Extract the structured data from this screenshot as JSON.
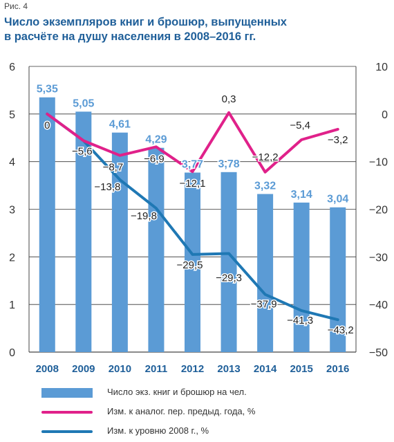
{
  "figure_label": "Рис. 4",
  "title_lines": [
    "Число экземпляров книг и брошюр, выпущенных",
    "в расчёте на душу населения в 2008–2016 гг."
  ],
  "colors": {
    "bar": "#5b9bd5",
    "pink": "#e0218a",
    "blue": "#1f78b4",
    "title": "#1f5f99"
  },
  "legend": [
    {
      "label": "Число экз. книг и брошюр на чел.",
      "color": "#5b9bd5",
      "kind": "bar"
    },
    {
      "label": "Изм. к аналог. пер. предыд. года, %",
      "color": "#e0218a",
      "kind": "line"
    },
    {
      "label": "Изм. к уровню 2008 г., %",
      "color": "#1f78b4",
      "kind": "line"
    }
  ],
  "chart_data": {
    "type": "bar",
    "categories": [
      "2008",
      "2009",
      "2010",
      "2011",
      "2012",
      "2013",
      "2014",
      "2015",
      "2016"
    ],
    "left_axis": {
      "ylim": [
        0,
        6
      ],
      "ticks": [
        "0",
        "1",
        "2",
        "3",
        "4",
        "5",
        "6"
      ]
    },
    "right_axis": {
      "ylim": [
        -50,
        10
      ],
      "ticks": [
        "10",
        "0",
        "−10",
        "−20",
        "−30",
        "−40",
        "−50"
      ]
    },
    "series": [
      {
        "name": "Число экз. книг и брошюр на чел.",
        "type": "bar",
        "axis": "left",
        "values": [
          5.35,
          5.05,
          4.61,
          4.29,
          3.77,
          3.78,
          3.32,
          3.14,
          3.04
        ],
        "labels": [
          "5,35",
          "5,05",
          "4,61",
          "4,29",
          "3,77",
          "3,78",
          "3,32",
          "3,14",
          "3,04"
        ]
      },
      {
        "name": "Изм. к аналог. пер. предыд. года, %",
        "type": "line",
        "axis": "right",
        "values": [
          0,
          -5.6,
          -8.7,
          -6.9,
          -12.1,
          0.3,
          -12.2,
          -5.4,
          -3.2
        ],
        "labels": [
          "0",
          "−5,6",
          "−8,7",
          "−6,9",
          "−12,1",
          "0,3",
          "−12,2",
          "−5,4",
          "−3,2"
        ]
      },
      {
        "name": "Изм. к уровню 2008 г., %",
        "type": "line",
        "axis": "right",
        "values": [
          0,
          -5.6,
          -13.8,
          -19.8,
          -29.5,
          -29.3,
          -37.9,
          -41.3,
          -43.2
        ],
        "labels": [
          "0",
          "−5,6",
          "−13,8",
          "−19,8",
          "−29,5",
          "−29,3",
          "−37,9",
          "−41,3",
          "−43,2"
        ]
      }
    ],
    "grid": true
  }
}
